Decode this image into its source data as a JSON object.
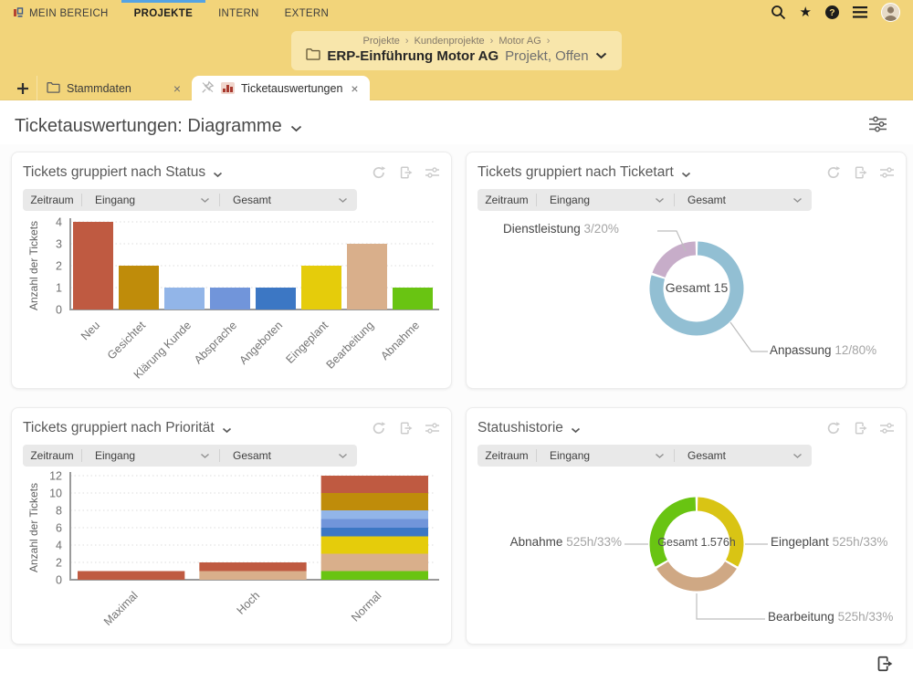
{
  "topnav": {
    "items": [
      {
        "label": "MEIN BEREICH"
      },
      {
        "label": "PROJEKTE",
        "active": true
      },
      {
        "label": "INTERN"
      },
      {
        "label": "EXTERN"
      }
    ]
  },
  "breadcrumb": {
    "items": [
      "Projekte",
      "Kundenprojekte",
      "Motor AG"
    ],
    "title": "ERP-Einführung Motor AG",
    "subtitle": "Projekt, Offen"
  },
  "tabs": [
    {
      "label": "Stammdaten"
    },
    {
      "label": "Ticketauswertungen",
      "active": true
    }
  ],
  "page": {
    "title": "Ticketauswertungen: Diagramme"
  },
  "filters": {
    "zeitraum": "Zeitraum",
    "eingang": "Eingang",
    "gesamt": "Gesamt"
  },
  "colors": {
    "accent_blue": "#54a3e4",
    "topbar_yellow": "#f2d47a",
    "breadcrumb_yellow": "#f8e6ab"
  },
  "chart_data": [
    {
      "type": "bar",
      "title": "Tickets gruppiert nach Status",
      "ylabel": "Anzahl der Tickets",
      "ylim": [
        0,
        4
      ],
      "yticks": [
        0,
        1,
        2,
        3,
        4
      ],
      "categories": [
        "Neu",
        "Gesichtet",
        "Klärung Kunde",
        "Absprache",
        "Angeboten",
        "Eingeplant",
        "Bearbeitung",
        "Abnahme"
      ],
      "values": [
        4,
        2,
        1,
        1,
        1,
        2,
        3,
        1
      ],
      "colors": [
        "#bf5a41",
        "#bf8c0a",
        "#92b5e8",
        "#7195da",
        "#3c77c4",
        "#e5cc0b",
        "#d9af8b",
        "#69c412"
      ]
    },
    {
      "type": "pie",
      "title": "Tickets gruppiert nach Ticketart",
      "center_label": "Gesamt 15",
      "total": 15,
      "slices": [
        {
          "name": "Anpassung",
          "value": 12,
          "value_label": "12/80%",
          "color": "#92bfd3"
        },
        {
          "name": "Dienstleistung",
          "value": 3,
          "value_label": "3/20%",
          "color": "#c7adc9"
        }
      ]
    },
    {
      "type": "bar",
      "stacked": true,
      "title": "Tickets gruppiert nach Priorität",
      "ylabel": "Anzahl der Tickets",
      "ylim": [
        0,
        12
      ],
      "yticks": [
        0,
        2,
        4,
        6,
        8,
        10,
        12
      ],
      "categories": [
        "Maximal",
        "Hoch",
        "Normal"
      ],
      "stacks": [
        [
          {
            "value": 1,
            "color": "#bf5a41"
          }
        ],
        [
          {
            "value": 1,
            "color": "#d9af8b"
          },
          {
            "value": 1,
            "color": "#bf5a41"
          }
        ],
        [
          {
            "value": 1,
            "color": "#69c412"
          },
          {
            "value": 2,
            "color": "#d9af8b"
          },
          {
            "value": 2,
            "color": "#e5cc0b"
          },
          {
            "value": 1,
            "color": "#3c77c4"
          },
          {
            "value": 1,
            "color": "#7195da"
          },
          {
            "value": 1,
            "color": "#92b5e8"
          },
          {
            "value": 2,
            "color": "#bf8c0a"
          },
          {
            "value": 2,
            "color": "#bf5a41"
          }
        ]
      ]
    },
    {
      "type": "pie",
      "title": "Statushistorie",
      "center_label": "Gesamt 1.576h",
      "slices": [
        {
          "name": "Eingeplant",
          "value": 525,
          "value_label": "525h/33%",
          "color": "#d9c414"
        },
        {
          "name": "Bearbeitung",
          "value": 525,
          "value_label": "525h/33%",
          "color": "#cfa884"
        },
        {
          "name": "Abnahme",
          "value": 525,
          "value_label": "525h/33%",
          "color": "#69c412"
        }
      ]
    }
  ]
}
